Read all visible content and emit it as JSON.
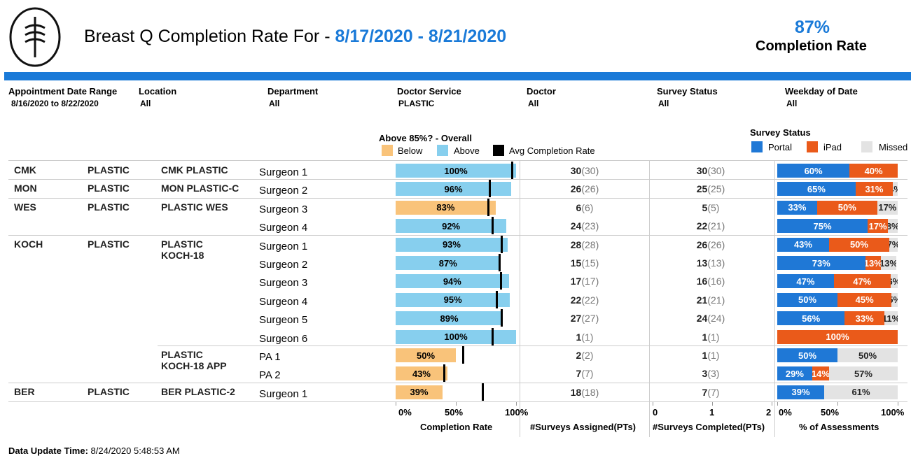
{
  "header": {
    "title": "Breast Q Completion Rate For - ",
    "date_range": "8/17/2020 - 8/21/2020",
    "kpi_value": "87%",
    "kpi_label": "Completion Rate"
  },
  "filters": [
    {
      "label": "Appointment Date Range",
      "value": "8/16/2020 to 8/22/2020"
    },
    {
      "label": "Location",
      "value": "All"
    },
    {
      "label": "Department",
      "value": "All"
    },
    {
      "label": "Doctor Service",
      "value": "PLASTIC"
    },
    {
      "label": "Doctor",
      "value": "All"
    },
    {
      "label": "Survey Status",
      "value": "All"
    },
    {
      "label": "Weekday of Date",
      "value": "All"
    }
  ],
  "completion_legend": {
    "title": "Above 85%? - Overall",
    "items": [
      {
        "name": "Below",
        "color": "#f9c37a"
      },
      {
        "name": "Above",
        "color": "#87cfee"
      },
      {
        "name": "Avg Completion Rate",
        "color": "#000000"
      }
    ]
  },
  "status_legend": {
    "title": "Survey Status",
    "items": [
      {
        "name": "Portal",
        "color": "#1f78d6"
      },
      {
        "name": "iPad",
        "color": "#ea5a1a"
      },
      {
        "name": "Missed",
        "color": "#e3e3e3"
      }
    ]
  },
  "rows": [
    {
      "site": "CMK",
      "service": "PLASTIC",
      "department": "CMK PLASTIC",
      "doctor": "Surgeon 1",
      "completion": 100,
      "completion_label": "100%",
      "color": "#87cfee",
      "avg": 96.5,
      "assigned": "30",
      "assigned_ref": "(30)",
      "completed": "30",
      "completed_ref": "(30)",
      "status": [
        60,
        40,
        0
      ],
      "status_labels": [
        "60%",
        "40%",
        null
      ]
    },
    {
      "site": "MON",
      "service": "PLASTIC",
      "department": "MON PLASTIC-C",
      "doctor": "Surgeon 2",
      "completion": 96,
      "completion_label": "96%",
      "color": "#87cfee",
      "avg": 78,
      "assigned": "26",
      "assigned_ref": "(26)",
      "completed": "25",
      "completed_ref": "(25)",
      "status": [
        65,
        31,
        4
      ],
      "status_labels": [
        "65%",
        "31%",
        "4%"
      ]
    },
    {
      "site": "WES",
      "service": "PLASTIC",
      "department": "PLASTIC WES",
      "doctor": "Surgeon 3",
      "completion": 83,
      "completion_label": "83%",
      "color": "#f9c37a",
      "avg": 77,
      "assigned": "6",
      "assigned_ref": "(6)",
      "completed": "5",
      "completed_ref": "(5)",
      "status": [
        33,
        50,
        17
      ],
      "status_labels": [
        "33%",
        "50%",
        "17%"
      ]
    },
    {
      "site": null,
      "service": null,
      "department": null,
      "doctor": "Surgeon 4",
      "completion": 92,
      "completion_label": "92%",
      "color": "#87cfee",
      "avg": 80,
      "assigned": "24",
      "assigned_ref": "(23)",
      "completed": "22",
      "completed_ref": "(21)",
      "status": [
        75,
        17,
        8
      ],
      "status_labels": [
        "75%",
        "17%",
        "8%"
      ]
    },
    {
      "site": "KOCH",
      "service": "PLASTIC",
      "department": "PLASTIC KOCH-18",
      "doctor": "Surgeon 1",
      "completion": 93,
      "completion_label": "93%",
      "color": "#87cfee",
      "avg": 88,
      "assigned": "28",
      "assigned_ref": "(28)",
      "completed": "26",
      "completed_ref": "(26)",
      "status": [
        43,
        50,
        7
      ],
      "status_labels": [
        "43%",
        "50%",
        "7%"
      ]
    },
    {
      "site": null,
      "service": null,
      "department": null,
      "doctor": "Surgeon 2",
      "completion": 87,
      "completion_label": "87%",
      "color": "#87cfee",
      "avg": 86,
      "assigned": "15",
      "assigned_ref": "(15)",
      "completed": "13",
      "completed_ref": "(13)",
      "status": [
        73,
        13,
        13
      ],
      "status_labels": [
        "73%",
        "13%",
        "13%"
      ]
    },
    {
      "site": null,
      "service": null,
      "department": null,
      "doctor": "Surgeon 3",
      "completion": 94,
      "completion_label": "94%",
      "color": "#87cfee",
      "avg": 87,
      "assigned": "17",
      "assigned_ref": "(17)",
      "completed": "16",
      "completed_ref": "(16)",
      "status": [
        47,
        47,
        6
      ],
      "status_labels": [
        "47%",
        "47%",
        "6%"
      ]
    },
    {
      "site": null,
      "service": null,
      "department": null,
      "doctor": "Surgeon 4",
      "completion": 95,
      "completion_label": "95%",
      "color": "#87cfee",
      "avg": 84,
      "assigned": "22",
      "assigned_ref": "(22)",
      "completed": "21",
      "completed_ref": "(21)",
      "status": [
        50,
        45,
        5
      ],
      "status_labels": [
        "50%",
        "45%",
        "5%"
      ]
    },
    {
      "site": null,
      "service": null,
      "department": null,
      "doctor": "Surgeon 5",
      "completion": 89,
      "completion_label": "89%",
      "color": "#87cfee",
      "avg": 88,
      "assigned": "27",
      "assigned_ref": "(27)",
      "completed": "24",
      "completed_ref": "(24)",
      "status": [
        56,
        33,
        11
      ],
      "status_labels": [
        "56%",
        "33%",
        "11%"
      ]
    },
    {
      "site": null,
      "service": null,
      "department": null,
      "doctor": "Surgeon 6",
      "completion": 100,
      "completion_label": "100%",
      "color": "#87cfee",
      "avg": 80,
      "assigned": "1",
      "assigned_ref": "(1)",
      "completed": "1",
      "completed_ref": "(1)",
      "status": [
        0,
        100,
        0
      ],
      "status_labels": [
        null,
        "100%",
        null
      ]
    },
    {
      "site": null,
      "service": null,
      "department": "PLASTIC KOCH-18 APP",
      "doctor": "PA 1",
      "completion": 50,
      "completion_label": "50%",
      "color": "#f9c37a",
      "avg": 56,
      "assigned": "2",
      "assigned_ref": "(2)",
      "completed": "1",
      "completed_ref": "(1)",
      "status": [
        50,
        0,
        50
      ],
      "status_labels": [
        "50%",
        null,
        "50%"
      ]
    },
    {
      "site": null,
      "service": null,
      "department": null,
      "doctor": "PA 2",
      "completion": 43,
      "completion_label": "43%",
      "color": "#f9c37a",
      "avg": 40,
      "assigned": "7",
      "assigned_ref": "(7)",
      "completed": "3",
      "completed_ref": "(3)",
      "status": [
        29,
        14,
        57
      ],
      "status_labels": [
        "29%",
        "14%",
        "57%"
      ]
    },
    {
      "site": "BER",
      "service": "PLASTIC",
      "department": "BER PLASTIC-2",
      "doctor": "Surgeon 1",
      "completion": 39,
      "completion_label": "39%",
      "color": "#f9c37a",
      "avg": 72,
      "assigned": "18",
      "assigned_ref": "(18)",
      "completed": "7",
      "completed_ref": "(7)",
      "status": [
        39,
        0,
        61
      ],
      "status_labels": [
        "39%",
        null,
        "61%"
      ]
    }
  ],
  "completion_axis": {
    "title": "Completion Rate",
    "xlim": [
      0,
      100
    ],
    "xticks": [
      {
        "value": 0,
        "label": "0%"
      },
      {
        "value": 50,
        "label": "50%"
      },
      {
        "value": 100,
        "label": "100%"
      }
    ]
  },
  "assigned_axis": {
    "title": "#Surveys Assigned(PTs)"
  },
  "completed_axis": {
    "title": "#Surveys Completed(PTs)",
    "xlim": [
      0,
      2
    ],
    "xticks": [
      0,
      1,
      2
    ]
  },
  "status_axis": {
    "title": "% of Assessments",
    "xlim": [
      0,
      100
    ],
    "xticks": [
      {
        "value": 0,
        "label": "0%"
      },
      {
        "value": 50,
        "label": "50%"
      },
      {
        "value": 100,
        "label": "100%"
      }
    ]
  },
  "footer": {
    "label": "Data Update Time:",
    "value": " 8/24/2020 5:48:53 AM"
  }
}
